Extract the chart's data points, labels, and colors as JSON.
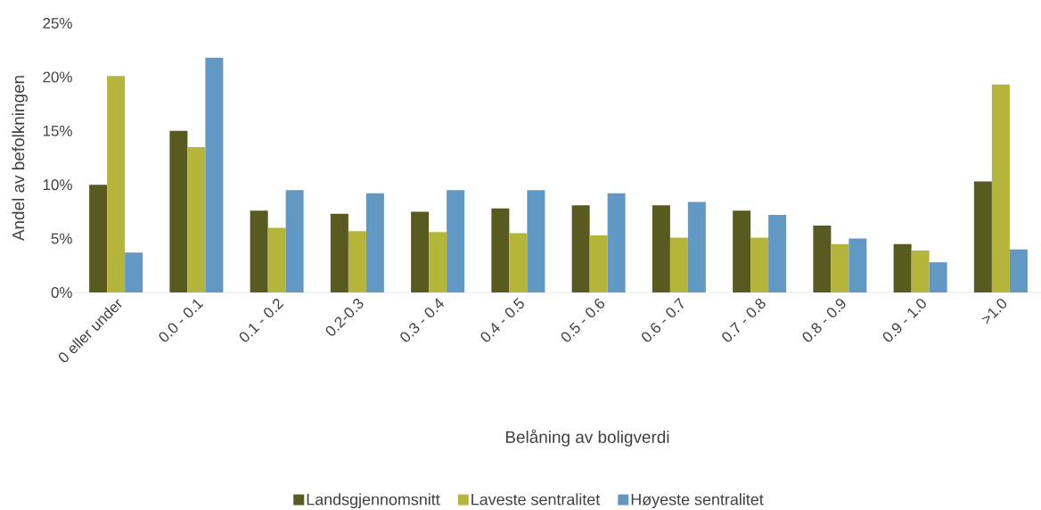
{
  "chart_data": {
    "type": "bar",
    "xlabel": "Belåning av boligverdi",
    "ylabel": "Andel av befolkningen",
    "categories": [
      "0 eller under",
      "0.0 - 0.1",
      "0.1 - 0.2",
      "0.2-0.3",
      "0.3 - 0.4",
      "0.4 - 0.5",
      "0.5 - 0.6",
      "0.6 - 0.7",
      "0.7 - 0.8",
      "0.8 - 0.9",
      "0.9 - 1.0",
      ">1.0"
    ],
    "series": [
      {
        "name": "Landsgjennomsnitt",
        "color": "#595a1f",
        "values": [
          10.0,
          15.0,
          7.6,
          7.3,
          7.5,
          7.8,
          8.1,
          8.1,
          7.6,
          6.2,
          4.5,
          10.3
        ]
      },
      {
        "name": "Laveste sentralitet",
        "color": "#b5b53c",
        "values": [
          20.1,
          13.5,
          6.0,
          5.7,
          5.6,
          5.5,
          5.3,
          5.1,
          5.1,
          4.5,
          3.9,
          19.3
        ]
      },
      {
        "name": "Høyeste sentralitet",
        "color": "#6298c4",
        "values": [
          3.7,
          21.8,
          9.5,
          9.2,
          9.5,
          9.5,
          9.2,
          8.4,
          7.2,
          5.0,
          2.8,
          4.0
        ]
      }
    ],
    "ylim": [
      0,
      25
    ],
    "yticks": [
      {
        "value": 0,
        "label": "0%"
      },
      {
        "value": 5,
        "label": "5%"
      },
      {
        "value": 10,
        "label": "10%"
      },
      {
        "value": 15,
        "label": "15%"
      },
      {
        "value": 20,
        "label": "20%"
      },
      {
        "value": 25,
        "label": "25%"
      }
    ],
    "legend": "bottom"
  }
}
